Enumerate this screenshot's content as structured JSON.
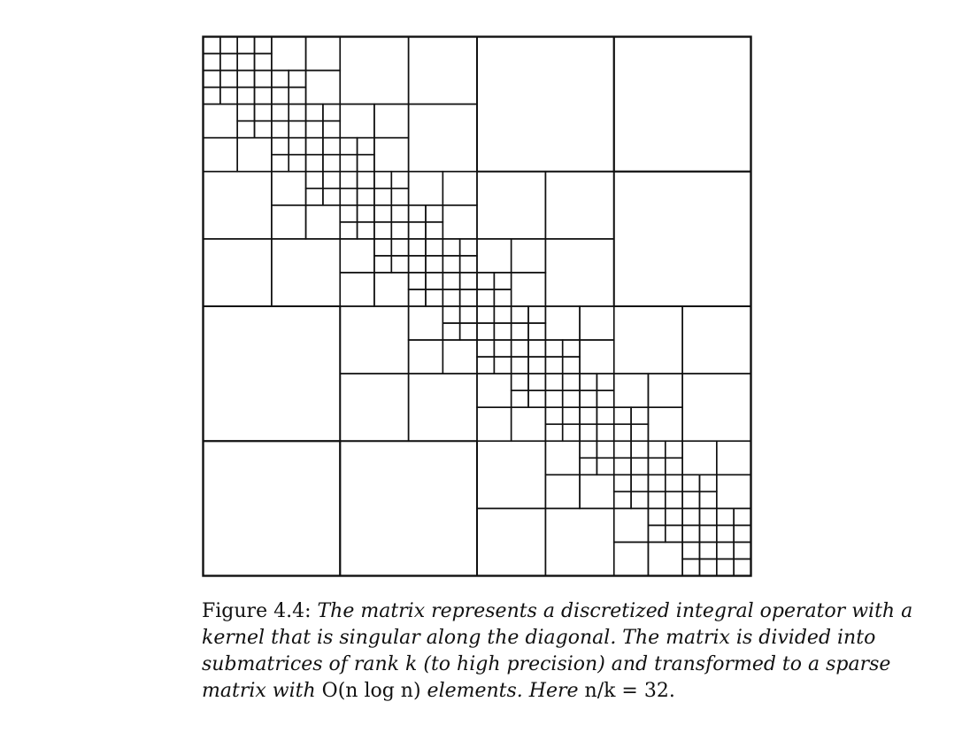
{
  "figure": {
    "label": "Figure 4.4:",
    "matrix": {
      "size_blocks": 32,
      "finest_level_offsets": [
        -1,
        0,
        1
      ],
      "line_color": "#111111",
      "background": "#ffffff"
    }
  },
  "caption": {
    "text_part1": "The matrix represents a discretized integral operator with a kernel that is singular along the diagonal. The matrix is divided into submatrices of rank k (to high precision) and transformed to a sparse matrix with",
    "math_on": "O(n log n)",
    "text_part2": "elements. Here",
    "math_ratio": "n/k = 32",
    "text_end": "."
  }
}
